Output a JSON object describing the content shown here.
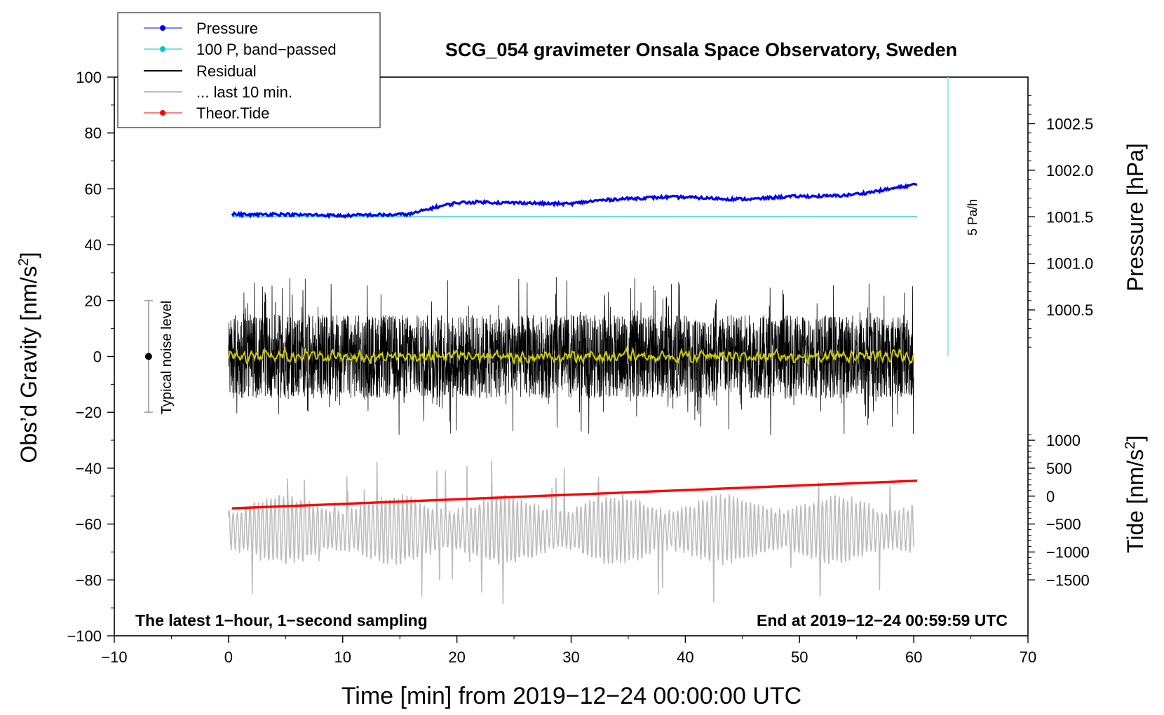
{
  "chart_data": {
    "type": "line",
    "title": "SCG_054 gravimeter Onsala Space Observatory, Sweden",
    "xlabel": "Time [min] from 2019−12−24 00:00:00 UTC",
    "ylabel_left": "Obs’d Gravity [nm/s",
    "ylabel_left_sup": "2",
    "ylabel_left_end": "]",
    "ylabel_right_pressure": "Pressure [hPa]",
    "ylabel_right_tide": "Tide [nm/s",
    "ylabel_right_tide_sup": "2",
    "ylabel_right_tide_end": "]",
    "xlim": [
      -10,
      70
    ],
    "ylim": [
      -100,
      100
    ],
    "x_ticks": [
      -10,
      0,
      10,
      20,
      30,
      40,
      50,
      60,
      70
    ],
    "x_tick_labels": [
      "−10",
      "0",
      "10",
      "20",
      "30",
      "40",
      "50",
      "60",
      "70"
    ],
    "y_ticks": [
      100,
      80,
      60,
      40,
      20,
      0,
      -20,
      -40,
      -60,
      -80,
      -100
    ],
    "y_tick_labels": [
      "100",
      "80",
      "60",
      "40",
      "20",
      "0",
      "−20",
      "−40",
      "−60",
      "−80",
      "−100"
    ],
    "pressure_axis": {
      "ticks": [
        1002.5,
        1002.0,
        1001.5,
        1001.0,
        1000.5
      ],
      "tick_labels": [
        "1002.5",
        "1002.0",
        "1001.5",
        "1001.0",
        "1000.5"
      ],
      "left_value_at_1001_5": 50,
      "left_units_per_hPa": 33.33
    },
    "tide_axis": {
      "ticks": [
        1000,
        500,
        0,
        -500,
        -1000,
        -1500
      ],
      "tick_labels": [
        "1000",
        "500",
        "0",
        "−500",
        "−1000",
        "−1500"
      ],
      "left_value_at_0": -50,
      "left_units_per_nm": 0.02
    },
    "legend": {
      "position": "top-left",
      "items": [
        {
          "label": "Pressure",
          "color": "#0000ff",
          "marker": true
        },
        {
          "label": "100 P, band−passed",
          "color": "#00c8c8",
          "marker": true
        },
        {
          "label": "Residual",
          "color": "#000000",
          "marker": false
        },
        {
          "label": "... last 10 min.",
          "color": "#bdbdbd",
          "marker": false
        },
        {
          "label": "Theor.Tide",
          "color": "#ff0000",
          "marker": true
        }
      ]
    },
    "annotations": {
      "noise_label": "Typical noise level",
      "noise_bar": {
        "x": -7,
        "center": 0,
        "low": -20,
        "high": 20
      },
      "rate_label": "5 Pa/h",
      "rate_bar": {
        "x": 63,
        "low": 0,
        "high": 100
      },
      "footer_left": "The latest 1−hour, 1−second sampling",
      "footer_right": "End at 2019−12−24 00:59:59 UTC"
    },
    "series": [
      {
        "name": "Pressure",
        "color": "#0000ff",
        "x": [
          0.3,
          2,
          4,
          6,
          8,
          10,
          12,
          14,
          16,
          18,
          20,
          22,
          24,
          26,
          28,
          30,
          32,
          34,
          36,
          38,
          40,
          42,
          44,
          46,
          48,
          50,
          52,
          54,
          56,
          58,
          60.3
        ],
        "hPa": [
          1001.53,
          1001.52,
          1001.53,
          1001.52,
          1001.52,
          1001.51,
          1001.52,
          1001.52,
          1001.53,
          1001.6,
          1001.65,
          1001.66,
          1001.65,
          1001.65,
          1001.64,
          1001.64,
          1001.67,
          1001.69,
          1001.7,
          1001.71,
          1001.71,
          1001.7,
          1001.69,
          1001.69,
          1001.71,
          1001.72,
          1001.72,
          1001.73,
          1001.76,
          1001.8,
          1001.85
        ]
      },
      {
        "name": "100 P, band−passed",
        "color": "#00c8c8",
        "x": [
          0.3,
          60.3
        ],
        "values": [
          50,
          50
        ]
      },
      {
        "name": "Residual",
        "color": "#000000",
        "x_range": [
          0,
          60
        ],
        "amplitude_typical": 15,
        "amplitude_max": 35,
        "mean": 0
      },
      {
        "name": "Residual (smoothed)",
        "color": "#cccc00",
        "x_range": [
          0,
          60
        ],
        "amplitude_typical": 3,
        "mean": 0
      },
      {
        "name": "... last 10 min.",
        "color": "#bdbdbd",
        "x_range": [
          0,
          60
        ],
        "mean": -62,
        "amplitude_typical": 12,
        "amplitude_max": 30
      },
      {
        "name": "Theor.Tide",
        "color": "#ff0000",
        "x": [
          0.3,
          60.3
        ],
        "nm_s2": [
          -219,
          275
        ]
      }
    ]
  }
}
